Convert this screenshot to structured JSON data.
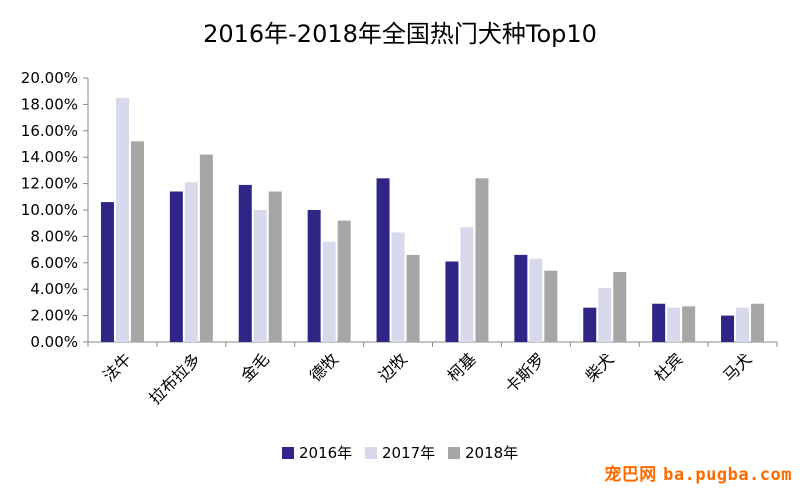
{
  "chart_data": {
    "type": "bar",
    "title": "2016年-2018年全国热门犬种Top10",
    "categories": [
      "法牛",
      "拉布拉多",
      "金毛",
      "德牧",
      "边牧",
      "柯基",
      "卡斯罗",
      "柴犬",
      "杜宾",
      "马犬"
    ],
    "series": [
      {
        "name": "2016年",
        "color": "#2e2586",
        "values": [
          10.6,
          11.4,
          11.9,
          10.0,
          12.4,
          6.1,
          6.6,
          2.6,
          2.9,
          2.0
        ]
      },
      {
        "name": "2017年",
        "color": "#d9d9ee",
        "values": [
          18.5,
          12.1,
          10.0,
          7.6,
          8.3,
          8.7,
          6.3,
          4.1,
          2.6,
          2.6
        ]
      },
      {
        "name": "2018年",
        "color": "#a6a6a6",
        "values": [
          15.2,
          14.2,
          11.4,
          9.2,
          6.6,
          12.4,
          5.4,
          5.3,
          2.7,
          2.9
        ]
      }
    ],
    "ylim": [
      0,
      20
    ],
    "yticks": [
      "0.00%",
      "2.00%",
      "4.00%",
      "6.00%",
      "8.00%",
      "10.00%",
      "12.00%",
      "14.00%",
      "16.00%",
      "18.00%",
      "20.00%"
    ],
    "grid": false,
    "legend": "bottom"
  },
  "watermark": {
    "brand": "宠巴网",
    "domain": "ba.pugba.com"
  }
}
